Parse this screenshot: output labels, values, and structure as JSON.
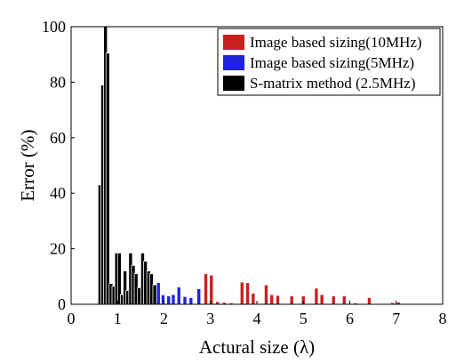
{
  "chart_data": {
    "type": "bar",
    "xlabel": "Actural size (λ)",
    "ylabel": "Error (%)",
    "xlim": [
      0,
      8
    ],
    "ylim": [
      0,
      100
    ],
    "xticks": [
      0,
      1,
      2,
      3,
      4,
      5,
      6,
      7,
      8
    ],
    "yticks": [
      0,
      20,
      40,
      60,
      80,
      100
    ],
    "legend_position": "top-right",
    "bar_width": 0.08,
    "series": [
      {
        "name": "Image based sizing(10MHz)",
        "color": "#cc1f1f",
        "points": [
          {
            "x": 2.9,
            "y": 11.0
          },
          {
            "x": 3.02,
            "y": 10.5
          },
          {
            "x": 3.15,
            "y": 1.0
          },
          {
            "x": 3.3,
            "y": 0.7
          },
          {
            "x": 3.45,
            "y": 0.5
          },
          {
            "x": 3.68,
            "y": 8.0
          },
          {
            "x": 3.8,
            "y": 7.8
          },
          {
            "x": 3.92,
            "y": 4.0
          },
          {
            "x": 4.2,
            "y": 7.0
          },
          {
            "x": 4.32,
            "y": 3.5
          },
          {
            "x": 4.45,
            "y": 3.2
          },
          {
            "x": 4.75,
            "y": 3.0
          },
          {
            "x": 5.0,
            "y": 3.0
          },
          {
            "x": 5.28,
            "y": 5.8
          },
          {
            "x": 5.4,
            "y": 3.5
          },
          {
            "x": 5.65,
            "y": 3.0
          },
          {
            "x": 5.88,
            "y": 3.0
          },
          {
            "x": 6.12,
            "y": 0.5
          },
          {
            "x": 6.42,
            "y": 2.4
          },
          {
            "x": 6.92,
            "y": 0.6
          },
          {
            "x": 7.05,
            "y": 0.8
          }
        ]
      },
      {
        "name": "Image based sizing(5MHz)",
        "color": "#1f22e0",
        "points": [
          {
            "x": 1.88,
            "y": 7.8
          },
          {
            "x": 1.98,
            "y": 3.4
          },
          {
            "x": 2.1,
            "y": 3.0
          },
          {
            "x": 2.2,
            "y": 3.5
          },
          {
            "x": 2.32,
            "y": 6.2
          },
          {
            "x": 2.45,
            "y": 2.8
          },
          {
            "x": 2.58,
            "y": 2.4
          },
          {
            "x": 2.75,
            "y": 5.6
          }
        ]
      },
      {
        "name": "S-matrix method (2.5MHz)",
        "color": "#000000",
        "points": [
          {
            "x": 0.62,
            "y": 43.0
          },
          {
            "x": 0.68,
            "y": 79.0
          },
          {
            "x": 0.74,
            "y": 100.0
          },
          {
            "x": 0.79,
            "y": 90.5
          },
          {
            "x": 0.86,
            "y": 7.5
          },
          {
            "x": 0.92,
            "y": 6.5
          },
          {
            "x": 0.98,
            "y": 18.5
          },
          {
            "x": 1.04,
            "y": 18.5
          },
          {
            "x": 1.1,
            "y": 3.5
          },
          {
            "x": 1.16,
            "y": 12.0
          },
          {
            "x": 1.22,
            "y": 5.0
          },
          {
            "x": 1.28,
            "y": 18.5
          },
          {
            "x": 1.34,
            "y": 14.0
          },
          {
            "x": 1.4,
            "y": 11.0
          },
          {
            "x": 1.47,
            "y": 6.0
          },
          {
            "x": 1.54,
            "y": 18.5
          },
          {
            "x": 1.6,
            "y": 15.5
          },
          {
            "x": 1.67,
            "y": 12.0
          },
          {
            "x": 1.73,
            "y": 11.0
          },
          {
            "x": 1.8,
            "y": 7.0
          }
        ]
      }
    ]
  }
}
